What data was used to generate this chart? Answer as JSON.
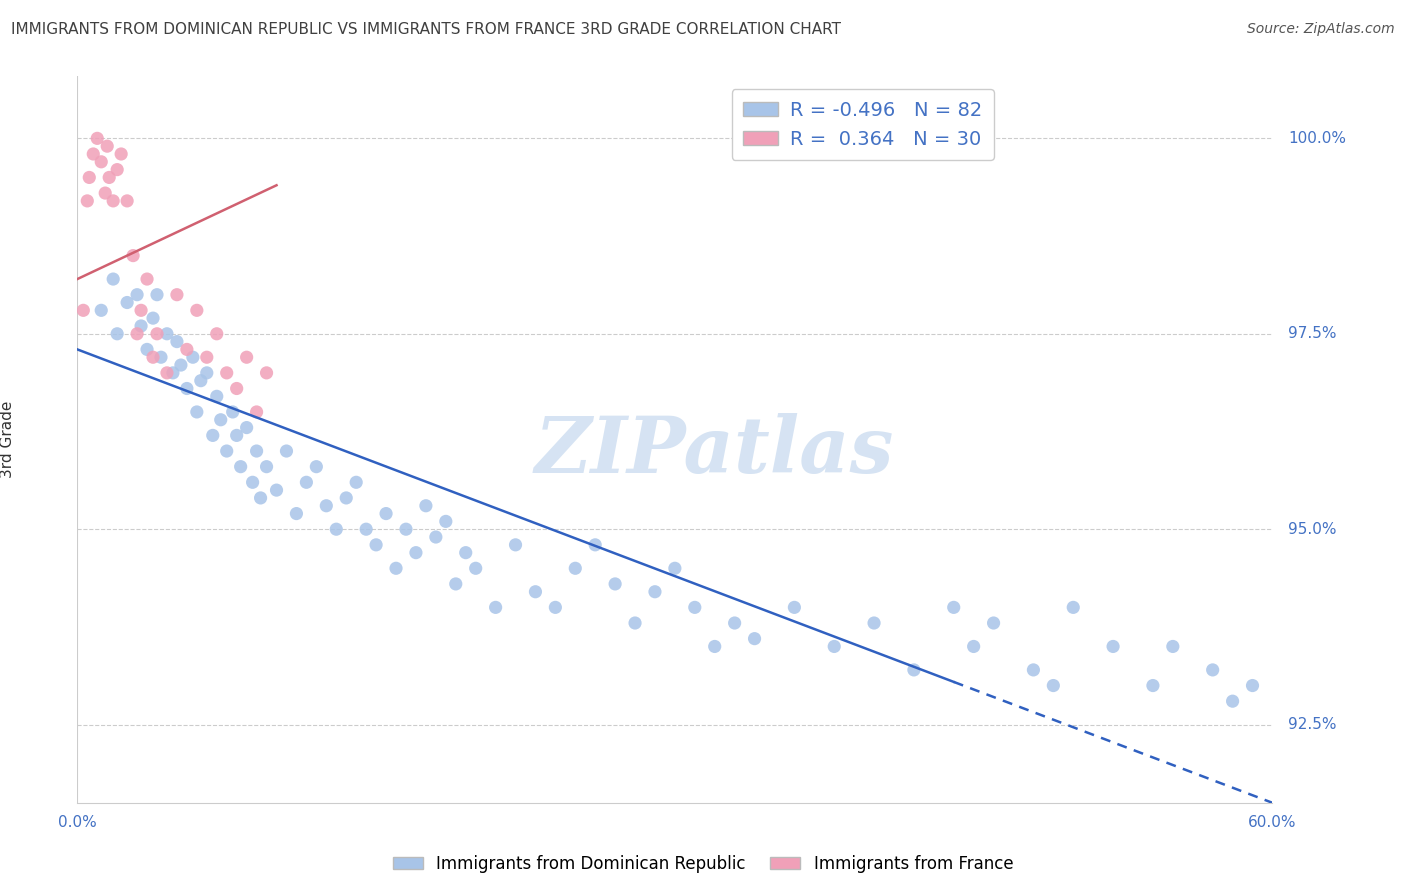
{
  "title": "IMMIGRANTS FROM DOMINICAN REPUBLIC VS IMMIGRANTS FROM FRANCE 3RD GRADE CORRELATION CHART",
  "source_text": "Source: ZipAtlas.com",
  "ylabel_label": "3rd Grade",
  "legend_label_blue": "Immigrants from Dominican Republic",
  "legend_label_pink": "Immigrants from France",
  "R_blue": -0.496,
  "N_blue": 82,
  "R_pink": 0.364,
  "N_pink": 30,
  "blue_color": "#a8c4e8",
  "pink_color": "#f0a0b8",
  "blue_line_color": "#3060c0",
  "pink_line_color": "#d06070",
  "title_color": "#404040",
  "axis_label_color": "#4472c4",
  "xmin": 0.0,
  "xmax": 60.0,
  "ymin": 91.5,
  "ymax": 100.8,
  "ytick_positions": [
    92.5,
    95.0,
    97.5,
    100.0
  ],
  "ytick_labels": [
    "92.5%",
    "95.0%",
    "97.5%",
    "100.0%"
  ],
  "xtick_left_label": "0.0%",
  "xtick_right_label": "60.0%",
  "blue_x": [
    1.2,
    1.8,
    2.0,
    2.5,
    3.0,
    3.2,
    3.5,
    3.8,
    4.0,
    4.2,
    4.5,
    4.8,
    5.0,
    5.2,
    5.5,
    5.8,
    6.0,
    6.2,
    6.5,
    6.8,
    7.0,
    7.2,
    7.5,
    7.8,
    8.0,
    8.2,
    8.5,
    8.8,
    9.0,
    9.2,
    9.5,
    10.0,
    10.5,
    11.0,
    11.5,
    12.0,
    12.5,
    13.0,
    13.5,
    14.0,
    14.5,
    15.0,
    15.5,
    16.0,
    16.5,
    17.0,
    17.5,
    18.0,
    18.5,
    19.0,
    19.5,
    20.0,
    21.0,
    22.0,
    23.0,
    24.0,
    25.0,
    26.0,
    27.0,
    28.0,
    29.0,
    30.0,
    31.0,
    32.0,
    33.0,
    34.0,
    36.0,
    38.0,
    40.0,
    42.0,
    44.0,
    45.0,
    46.0,
    48.0,
    49.0,
    50.0,
    52.0,
    54.0,
    55.0,
    57.0,
    58.0,
    59.0
  ],
  "blue_y": [
    97.8,
    98.2,
    97.5,
    97.9,
    98.0,
    97.6,
    97.3,
    97.7,
    98.0,
    97.2,
    97.5,
    97.0,
    97.4,
    97.1,
    96.8,
    97.2,
    96.5,
    96.9,
    97.0,
    96.2,
    96.7,
    96.4,
    96.0,
    96.5,
    96.2,
    95.8,
    96.3,
    95.6,
    96.0,
    95.4,
    95.8,
    95.5,
    96.0,
    95.2,
    95.6,
    95.8,
    95.3,
    95.0,
    95.4,
    95.6,
    95.0,
    94.8,
    95.2,
    94.5,
    95.0,
    94.7,
    95.3,
    94.9,
    95.1,
    94.3,
    94.7,
    94.5,
    94.0,
    94.8,
    94.2,
    94.0,
    94.5,
    94.8,
    94.3,
    93.8,
    94.2,
    94.5,
    94.0,
    93.5,
    93.8,
    93.6,
    94.0,
    93.5,
    93.8,
    93.2,
    94.0,
    93.5,
    93.8,
    93.2,
    93.0,
    94.0,
    93.5,
    93.0,
    93.5,
    93.2,
    92.8,
    93.0
  ],
  "pink_x": [
    0.3,
    0.5,
    0.6,
    0.8,
    1.0,
    1.2,
    1.4,
    1.5,
    1.6,
    1.8,
    2.0,
    2.2,
    2.5,
    2.8,
    3.0,
    3.2,
    3.5,
    3.8,
    4.0,
    4.5,
    5.0,
    5.5,
    6.0,
    6.5,
    7.0,
    7.5,
    8.0,
    8.5,
    9.0,
    9.5
  ],
  "pink_y": [
    97.8,
    99.2,
    99.5,
    99.8,
    100.0,
    99.7,
    99.3,
    99.9,
    99.5,
    99.2,
    99.6,
    99.8,
    99.2,
    98.5,
    97.5,
    97.8,
    98.2,
    97.2,
    97.5,
    97.0,
    98.0,
    97.3,
    97.8,
    97.2,
    97.5,
    97.0,
    96.8,
    97.2,
    96.5,
    97.0
  ],
  "blue_line_x0": 0.0,
  "blue_line_y0": 97.3,
  "blue_line_x1": 60.0,
  "blue_line_y1": 91.5,
  "blue_solid_x_end": 44.0,
  "pink_line_x0": 0.0,
  "pink_line_y0": 98.2,
  "pink_line_x1": 10.0,
  "pink_line_y1": 99.4
}
